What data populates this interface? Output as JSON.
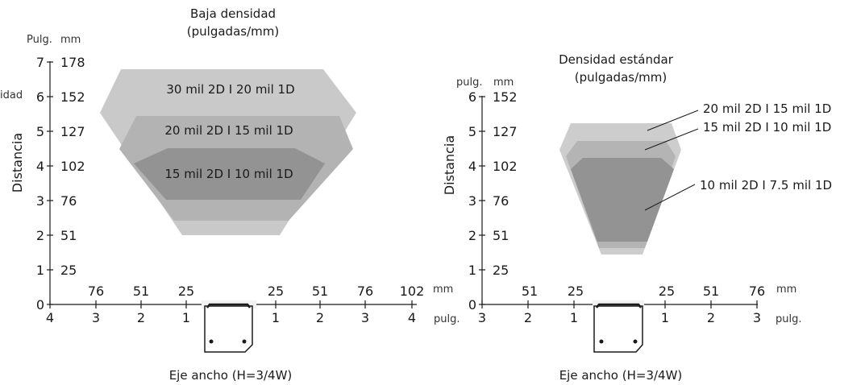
{
  "chart_data": [
    {
      "type": "area",
      "title": "Baja densidad",
      "subtitle": "(pulgadas/mm)",
      "ylabel": "Distancia",
      "ylabel_visible": "idad",
      "y_unit_in": "Pulg.",
      "y_unit_mm": "mm",
      "y_ticks_in": [
        "0",
        "1",
        "2",
        "3",
        "4",
        "5",
        "6",
        "7"
      ],
      "y_ticks_mm": [
        "25",
        "51",
        "76",
        "102",
        "127",
        "152",
        "178"
      ],
      "ylim": [
        0,
        7
      ],
      "xlim": [
        -4,
        4
      ],
      "x_ticks_mm_left": [
        "76",
        "51",
        "25"
      ],
      "x_ticks_mm_right": [
        "25",
        "51",
        "76",
        "102"
      ],
      "x_unit_mm": "mm",
      "x_ticks_in": [
        "4",
        "3",
        "2",
        "1",
        "1",
        "2",
        "3",
        "4"
      ],
      "x_unit_in": "pulg.",
      "xlabel": "Eje ancho (H=3/4W)",
      "series": [
        {
          "name": "30 mil 2D I 20 mil 1D",
          "color": "#c9c9c9",
          "polygon": [
            [
              -1.95,
              2.0
            ],
            [
              -2.65,
              2.0
            ],
            [
              -3.05,
              5.5
            ],
            [
              -2.55,
              6.8
            ],
            [
              2.55,
              6.8
            ],
            [
              3.0,
              5.5
            ],
            [
              2.6,
              2.0
            ],
            [
              1.95,
              2.0
            ]
          ]
        },
        {
          "name": "20 mil 2D I 15 mil 1D",
          "color": "#b3b3b3",
          "polygon": [
            [
              -2.45,
              2.45
            ],
            [
              -2.95,
              4.65
            ],
            [
              -2.55,
              5.4
            ],
            [
              1.95,
              5.4
            ],
            [
              2.5,
              4.65
            ],
            [
              2.2,
              2.45
            ]
          ]
        },
        {
          "name": "15 mil 2D I 10 mil 1D",
          "color": "#939393",
          "polygon": [
            [
              -2.15,
              3.05
            ],
            [
              -2.65,
              3.9
            ],
            [
              -2.55,
              4.45
            ],
            [
              1.5,
              4.45
            ],
            [
              2.05,
              3.9
            ],
            [
              1.95,
              3.05
            ]
          ]
        }
      ]
    },
    {
      "type": "area",
      "title": "Densidad estándar",
      "subtitle": "(pulgadas/mm)",
      "ylabel": "Distancia",
      "y_unit_in": "pulg.",
      "y_unit_mm": "mm",
      "y_ticks_in": [
        "0",
        "1",
        "2",
        "3",
        "4",
        "5",
        "6"
      ],
      "y_ticks_mm": [
        "25",
        "51",
        "76",
        "102",
        "127",
        "152"
      ],
      "ylim": [
        0,
        6
      ],
      "xlim": [
        -3,
        3
      ],
      "x_ticks_mm_left": [
        "51",
        "25"
      ],
      "x_ticks_mm_right": [
        "25",
        "51",
        "76"
      ],
      "x_unit_mm": "mm",
      "x_ticks_in": [
        "3",
        "2",
        "1",
        "1",
        "2",
        "3"
      ],
      "x_unit_in": "pulg.",
      "xlabel": "Eje ancho (H=3/4W)",
      "series": [
        {
          "name": "20 mil 2D I 15 mil 1D",
          "color": "#cdcdcd",
          "polygon": [
            [
              -0.45,
              1.45
            ],
            [
              -0.3,
              1.45
            ],
            [
              -0.5,
              1.7
            ],
            [
              -0.35,
              1.7
            ],
            [
              -0.65,
              2.0
            ],
            [
              -0.42,
              2.0
            ],
            [
              -0.3,
              1.45
            ],
            [
              -0.5,
              1.45
            ]
          ]
        },
        {
          "name": "15 mil 2D I 10 mil 1D",
          "color": "#b4b4b4",
          "polygon": []
        },
        {
          "name": "10 mil 2D I 7.5 mil 1D",
          "color": "#939393",
          "polygon": []
        }
      ]
    }
  ]
}
